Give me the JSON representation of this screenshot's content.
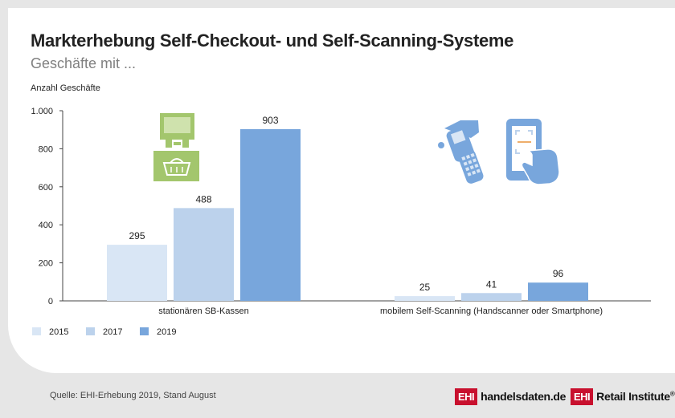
{
  "title": "Markterhebung Self-Checkout- und Self-Scanning-Systeme",
  "subtitle": "Geschäfte mit ...",
  "colors": {
    "2015": "#d9e6f5",
    "2017": "#bcd2ec",
    "2019": "#78a6dc",
    "accent_red": "#c8102e",
    "kasse_green": "#a3c66d",
    "device_blue": "#78a6dc"
  },
  "chart_data": {
    "type": "bar",
    "ylabel": "Anzahl Geschäfte",
    "ylim": [
      0,
      1000
    ],
    "yticks": [
      0,
      200,
      400,
      600,
      800,
      1000
    ],
    "ytick_labels": [
      "0",
      "200",
      "400",
      "600",
      "800",
      "1.000"
    ],
    "categories": [
      "stationären SB-Kassen",
      "mobilem Self-Scanning (Handscanner oder Smartphone)"
    ],
    "series": [
      {
        "name": "2015",
        "values": [
          295,
          25
        ]
      },
      {
        "name": "2017",
        "values": [
          488,
          41
        ]
      },
      {
        "name": "2019",
        "values": [
          903,
          96
        ]
      }
    ],
    "legend": "bottom-left",
    "grid": false
  },
  "icons": {
    "checkout": "self-checkout-terminal-icon",
    "scanner": "handheld-scanner-icon",
    "smartphone": "smartphone-scan-icon"
  },
  "footer": {
    "source": "Quelle: EHI-Erhebung 2019, Stand August",
    "logo1_box": "EHI",
    "logo1_text": "handelsdaten.de",
    "logo2_box": "EHI",
    "logo2_text": "Retail Institute",
    "logo2_reg": "®"
  }
}
